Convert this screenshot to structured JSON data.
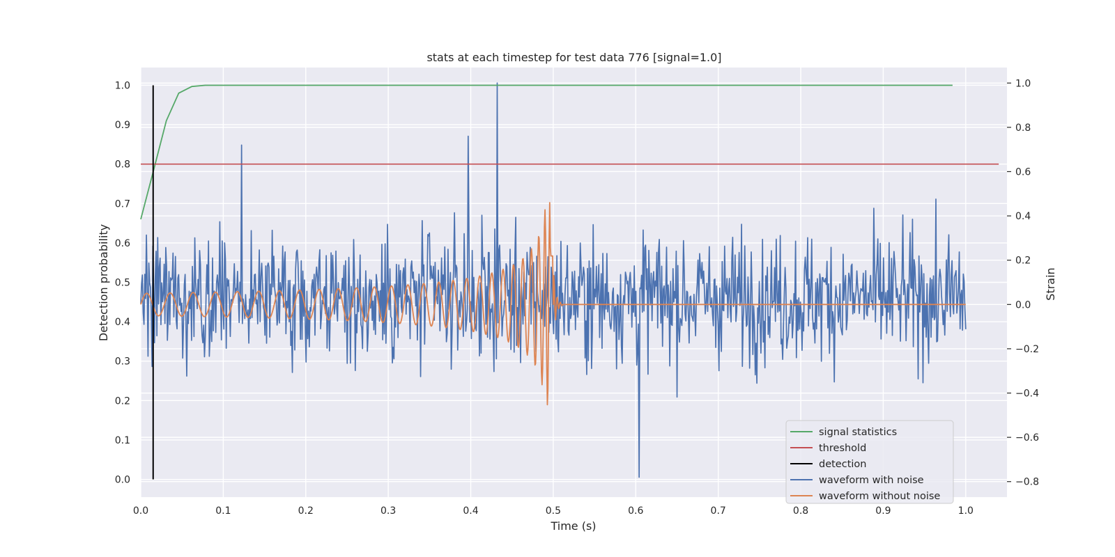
{
  "chart_data": {
    "type": "line",
    "title": "stats at each timestep for test data 776 [signal=1.0]",
    "xlabel": "Time (s)",
    "ylabel_left": "Detection probability",
    "ylabel_right": "Strain",
    "xlim": [
      0.0,
      1.05
    ],
    "ylim_left": [
      -0.045,
      1.045
    ],
    "ylim_right": [
      -0.87,
      1.07
    ],
    "x_ticks": [
      "0.0",
      "0.1",
      "0.2",
      "0.3",
      "0.4",
      "0.5",
      "0.6",
      "0.7",
      "0.8",
      "0.9",
      "1.0"
    ],
    "y_ticks_left": [
      "0.0",
      "0.1",
      "0.2",
      "0.3",
      "0.4",
      "0.5",
      "0.6",
      "0.7",
      "0.8",
      "0.9",
      "1.0"
    ],
    "y_ticks_right": [
      "−0.8",
      "−0.6",
      "−0.4",
      "−0.2",
      "0.0",
      "0.2",
      "0.4",
      "0.6",
      "0.8",
      "1.0"
    ],
    "grid": true,
    "legend_position": "lower-right",
    "colors": {
      "signal_statistics": "#55a868",
      "threshold": "#c44e52",
      "detection": "#000000",
      "waveform_with_noise": "#4c72b0",
      "waveform_without_noise": "#dd8452",
      "plot_background": "#eaeaf2",
      "grid": "#ffffff"
    },
    "series": [
      {
        "name": "signal statistics",
        "axis": "left",
        "x": [
          0.0,
          0.015,
          0.031,
          0.046,
          0.062,
          0.078,
          0.1,
          0.2,
          0.4,
          0.6,
          0.8,
          0.984
        ],
        "y": [
          0.66,
          0.78,
          0.91,
          0.98,
          0.997,
          1.0,
          1.0,
          1.0,
          1.0,
          1.0,
          1.0,
          1.0
        ]
      },
      {
        "name": "threshold",
        "axis": "left",
        "x": [
          0.0,
          1.04
        ],
        "y": [
          0.8,
          0.8
        ]
      },
      {
        "name": "detection",
        "axis": "left",
        "x": [
          0.015,
          0.015
        ],
        "y": [
          0.0,
          1.0
        ]
      },
      {
        "name": "waveform with noise",
        "axis": "right",
        "x_range": [
          0.0,
          1.0
        ],
        "samples": 1024,
        "y_range": [
          -0.78,
          1.0
        ],
        "y_peaks": [
          {
            "x": 0.432,
            "y": 1.0
          },
          {
            "x": 0.604,
            "y": -0.78
          },
          {
            "x": 0.397,
            "y": 0.76
          },
          {
            "x": 0.122,
            "y": 0.72
          }
        ]
      },
      {
        "name": "waveform without noise",
        "axis": "right",
        "x_range": [
          0.0,
          1.0
        ],
        "chirp_end": 0.5,
        "start_amplitude": 0.05,
        "peak": {
          "x": 0.49,
          "y": 0.48
        },
        "trough": {
          "x": 0.488,
          "y": -0.41
        },
        "after_merger": 0.0
      }
    ],
    "legend": [
      "signal statistics",
      "threshold",
      "detection",
      "waveform with noise",
      "waveform without noise"
    ]
  }
}
